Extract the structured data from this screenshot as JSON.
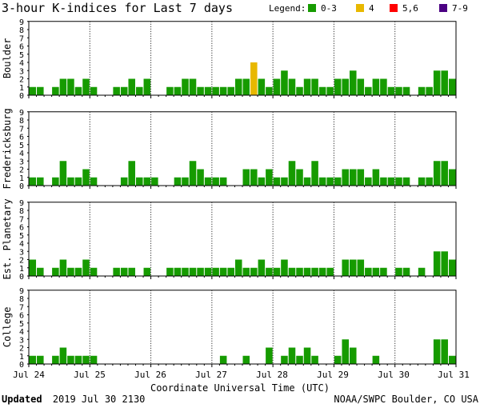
{
  "chart_data": {
    "type": "bar",
    "title": "3-hour K-indices for Last 7 days",
    "xlabel": "Coordinate Universal Time (UTC)",
    "ylim": [
      0,
      9
    ],
    "yticks": [
      0,
      1,
      2,
      3,
      4,
      5,
      6,
      7,
      8,
      9
    ],
    "x_tick_labels": [
      "Jul 24",
      "Jul 25",
      "Jul 26",
      "Jul 27",
      "Jul 28",
      "Jul 29",
      "Jul 30",
      "Jul 31"
    ],
    "intervals_per_day": 8,
    "legend": {
      "label": "Legend:",
      "placement": "top-right",
      "entries": [
        {
          "label": "0-3",
          "color": "#169b00"
        },
        {
          "label": "4",
          "color": "#e8b800"
        },
        {
          "label": "5,6",
          "color": "#ff0000"
        },
        {
          "label": "7-9",
          "color": "#4b0082"
        }
      ]
    },
    "panels": [
      {
        "name": "Boulder",
        "values": [
          1,
          1,
          0,
          1,
          2,
          2,
          1,
          2,
          1,
          0,
          0,
          1,
          1,
          2,
          1,
          2,
          0,
          0,
          1,
          1,
          2,
          2,
          1,
          1,
          1,
          1,
          1,
          2,
          2,
          4,
          2,
          1,
          2,
          3,
          2,
          1,
          2,
          2,
          1,
          1,
          2,
          2,
          3,
          2,
          1,
          2,
          2,
          1,
          1,
          1,
          0,
          1,
          1,
          3,
          3,
          2,
          0
        ]
      },
      {
        "name": "Fredericksburg",
        "values": [
          1,
          1,
          0,
          1,
          3,
          1,
          1,
          2,
          1,
          0,
          0,
          0,
          1,
          3,
          1,
          1,
          1,
          0,
          0,
          1,
          1,
          3,
          2,
          1,
          1,
          1,
          0,
          0,
          2,
          2,
          1,
          2,
          1,
          1,
          3,
          2,
          1,
          3,
          1,
          1,
          1,
          2,
          2,
          2,
          1,
          2,
          1,
          1,
          1,
          1,
          0,
          1,
          1,
          3,
          3,
          2,
          0
        ]
      },
      {
        "name": "Est. Planetary",
        "values": [
          2,
          1,
          0,
          1,
          2,
          1,
          1,
          2,
          1,
          0,
          0,
          1,
          1,
          1,
          0,
          1,
          0,
          0,
          1,
          1,
          1,
          1,
          1,
          1,
          1,
          1,
          1,
          2,
          1,
          1,
          2,
          1,
          1,
          2,
          1,
          1,
          1,
          1,
          1,
          1,
          0,
          2,
          2,
          2,
          1,
          1,
          1,
          0,
          1,
          1,
          0,
          1,
          0,
          3,
          3,
          2,
          0
        ]
      },
      {
        "name": "College",
        "values": [
          1,
          1,
          0,
          1,
          2,
          1,
          1,
          1,
          1,
          0,
          0,
          0,
          0,
          0,
          0,
          0,
          0,
          0,
          0,
          0,
          0,
          0,
          0,
          0,
          0,
          1,
          0,
          0,
          1,
          0,
          0,
          2,
          0,
          1,
          2,
          1,
          2,
          1,
          0,
          0,
          1,
          3,
          2,
          0,
          0,
          1,
          0,
          0,
          0,
          0,
          0,
          0,
          0,
          3,
          3,
          1,
          0
        ]
      }
    ]
  },
  "footer": {
    "updated_label": "Updated",
    "updated_value": "2019 Jul 30 2130",
    "credit": "NOAA/SWPC Boulder, CO USA"
  }
}
